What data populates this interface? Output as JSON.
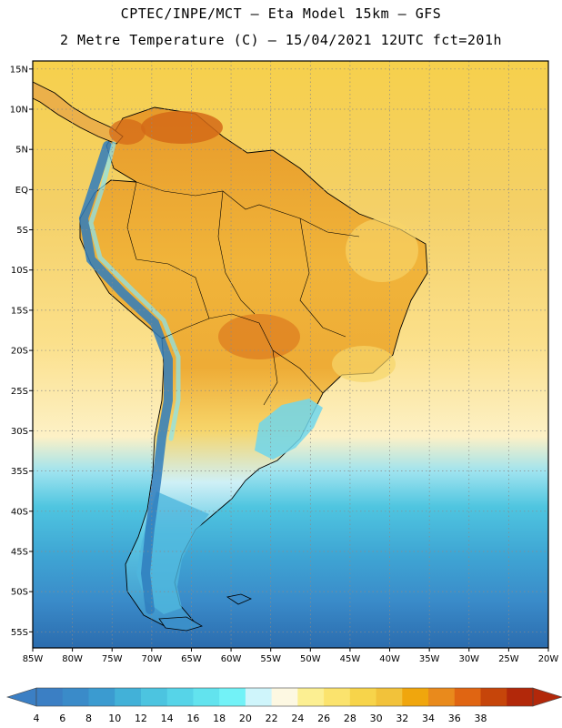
{
  "header": {
    "line1": "CPTEC/INPE/MCT –  Eta Model 15km – GFS",
    "line2": "2 Metre Temperature (C) – 15/04/2021 12UTC fct=201h"
  },
  "map": {
    "lon_range": [
      -85,
      -20
    ],
    "lat_range": [
      -57,
      16
    ],
    "lat_ticks": [
      {
        "value": 15,
        "label": "15N"
      },
      {
        "value": 10,
        "label": "10N"
      },
      {
        "value": 5,
        "label": "5N"
      },
      {
        "value": 0,
        "label": "EQ"
      },
      {
        "value": -5,
        "label": "5S"
      },
      {
        "value": -10,
        "label": "10S"
      },
      {
        "value": -15,
        "label": "15S"
      },
      {
        "value": -20,
        "label": "20S"
      },
      {
        "value": -25,
        "label": "25S"
      },
      {
        "value": -30,
        "label": "30S"
      },
      {
        "value": -35,
        "label": "35S"
      },
      {
        "value": -40,
        "label": "40S"
      },
      {
        "value": -45,
        "label": "45S"
      },
      {
        "value": -50,
        "label": "50S"
      },
      {
        "value": -55,
        "label": "55S"
      }
    ],
    "lon_ticks": [
      {
        "value": -85,
        "label": "85W"
      },
      {
        "value": -80,
        "label": "80W"
      },
      {
        "value": -75,
        "label": "75W"
      },
      {
        "value": -70,
        "label": "70W"
      },
      {
        "value": -65,
        "label": "65W"
      },
      {
        "value": -60,
        "label": "60W"
      },
      {
        "value": -55,
        "label": "55W"
      },
      {
        "value": -50,
        "label": "50W"
      },
      {
        "value": -45,
        "label": "45W"
      },
      {
        "value": -40,
        "label": "40W"
      },
      {
        "value": -35,
        "label": "35W"
      },
      {
        "value": -30,
        "label": "30W"
      },
      {
        "value": -25,
        "label": "25W"
      },
      {
        "value": -20,
        "label": "20W"
      }
    ],
    "colors": {
      "frame": "#000000",
      "gridline": "#8a8a8a",
      "coast": "#000000",
      "land_warm": "#f0b43a",
      "land_hot": "#d46a18",
      "land_mild": "#f7d56a",
      "andes_cold": "#2f7dbd",
      "ocean_tropical": "#f6d04c",
      "ocean_subtropical": "#fde9a8",
      "ocean_cool": "#4fc5e0",
      "ocean_cold": "#3b8fc9",
      "ocean_coldest": "#2b6cae"
    }
  },
  "colorbar": {
    "labels": [
      "4",
      "6",
      "8",
      "10",
      "12",
      "14",
      "16",
      "18",
      "20",
      "22",
      "24",
      "26",
      "28",
      "30",
      "32",
      "34",
      "36",
      "38"
    ],
    "colors": [
      "#3b7fc4",
      "#3a8bc9",
      "#3b9bd0",
      "#42b1d8",
      "#4cc4e0",
      "#56d4e8",
      "#62e3ee",
      "#72f2f7",
      "#cff5fb",
      "#fdf8e2",
      "#fcef92",
      "#fbe36d",
      "#f7d44a",
      "#f2c23a",
      "#f0a60d",
      "#e98a1c",
      "#e06512",
      "#c6450a",
      "#b2280a"
    ]
  }
}
